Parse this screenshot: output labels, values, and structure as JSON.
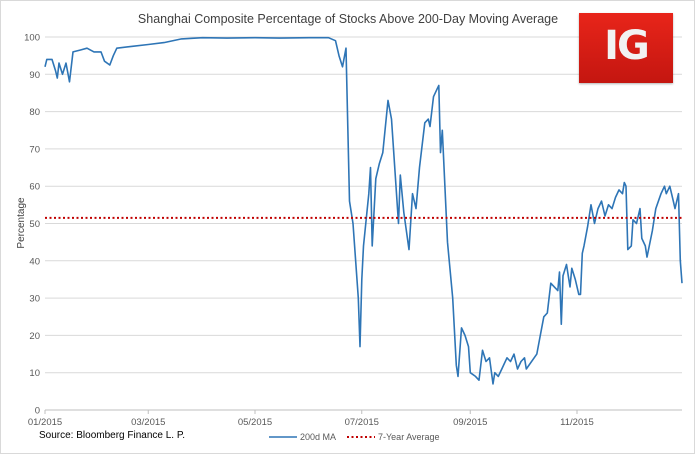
{
  "chart_data": {
    "type": "line",
    "title": "Shanghai Composite Percentage of Stocks Above 200-Day Moving Average",
    "xlabel": "",
    "ylabel": "Percentage",
    "ylim": [
      0,
      100
    ],
    "yticks": [
      0,
      10,
      20,
      30,
      40,
      50,
      60,
      70,
      80,
      90,
      100
    ],
    "xlim": [
      "2015-01-01",
      "2015-12-31"
    ],
    "xtick_labels": [
      "01/2015",
      "03/2015",
      "05/2015",
      "07/2015",
      "09/2015",
      "11/2015"
    ],
    "xtick_dates": [
      "2015-01-01",
      "2015-03-01",
      "2015-05-01",
      "2015-07-01",
      "2015-09-01",
      "2015-11-01"
    ],
    "grid": "horizontal",
    "legend": "bottom",
    "series": [
      {
        "name": "200d MA",
        "color": "#2e75b6",
        "style": "solid",
        "points": [
          [
            "2015-01-01",
            92
          ],
          [
            "2015-01-02",
            94
          ],
          [
            "2015-01-05",
            94
          ],
          [
            "2015-01-07",
            91
          ],
          [
            "2015-01-08",
            89
          ],
          [
            "2015-01-09",
            93
          ],
          [
            "2015-01-11",
            90
          ],
          [
            "2015-01-13",
            93
          ],
          [
            "2015-01-15",
            88
          ],
          [
            "2015-01-17",
            96
          ],
          [
            "2015-01-21",
            96.5
          ],
          [
            "2015-01-25",
            97
          ],
          [
            "2015-01-29",
            96
          ],
          [
            "2015-02-02",
            96
          ],
          [
            "2015-02-04",
            93.5
          ],
          [
            "2015-02-07",
            92.5
          ],
          [
            "2015-02-09",
            95
          ],
          [
            "2015-02-11",
            97
          ],
          [
            "2015-02-20",
            97.5
          ],
          [
            "2015-03-01",
            98
          ],
          [
            "2015-03-10",
            98.5
          ],
          [
            "2015-03-20",
            99.5
          ],
          [
            "2015-04-01",
            99.8
          ],
          [
            "2015-04-15",
            99.7
          ],
          [
            "2015-05-01",
            99.8
          ],
          [
            "2015-05-15",
            99.7
          ],
          [
            "2015-06-01",
            99.8
          ],
          [
            "2015-06-12",
            99.8
          ],
          [
            "2015-06-16",
            99
          ],
          [
            "2015-06-18",
            95
          ],
          [
            "2015-06-20",
            92
          ],
          [
            "2015-06-22",
            97
          ],
          [
            "2015-06-24",
            56
          ],
          [
            "2015-06-26",
            50
          ],
          [
            "2015-06-29",
            30
          ],
          [
            "2015-06-30",
            17
          ],
          [
            "2015-07-01",
            35
          ],
          [
            "2015-07-02",
            44
          ],
          [
            "2015-07-05",
            58
          ],
          [
            "2015-07-06",
            65
          ],
          [
            "2015-07-07",
            44
          ],
          [
            "2015-07-09",
            62
          ],
          [
            "2015-07-11",
            66
          ],
          [
            "2015-07-13",
            69
          ],
          [
            "2015-07-16",
            83
          ],
          [
            "2015-07-18",
            78
          ],
          [
            "2015-07-22",
            50
          ],
          [
            "2015-07-23",
            63
          ],
          [
            "2015-07-25",
            53
          ],
          [
            "2015-07-28",
            43
          ],
          [
            "2015-07-30",
            58
          ],
          [
            "2015-08-01",
            54
          ],
          [
            "2015-08-03",
            65
          ],
          [
            "2015-08-06",
            77
          ],
          [
            "2015-08-08",
            78
          ],
          [
            "2015-08-09",
            76
          ],
          [
            "2015-08-11",
            84
          ],
          [
            "2015-08-13",
            86
          ],
          [
            "2015-08-14",
            87
          ],
          [
            "2015-08-15",
            69
          ],
          [
            "2015-08-16",
            75
          ],
          [
            "2015-08-19",
            45
          ],
          [
            "2015-08-22",
            30
          ],
          [
            "2015-08-24",
            12
          ],
          [
            "2015-08-25",
            9
          ],
          [
            "2015-08-27",
            22
          ],
          [
            "2015-08-29",
            20
          ],
          [
            "2015-08-31",
            17
          ],
          [
            "2015-09-01",
            10
          ],
          [
            "2015-09-04",
            9
          ],
          [
            "2015-09-06",
            8
          ],
          [
            "2015-09-08",
            16
          ],
          [
            "2015-09-10",
            13
          ],
          [
            "2015-09-12",
            14
          ],
          [
            "2015-09-14",
            7
          ],
          [
            "2015-09-15",
            10
          ],
          [
            "2015-09-17",
            9
          ],
          [
            "2015-09-19",
            11
          ],
          [
            "2015-09-22",
            14
          ],
          [
            "2015-09-24",
            13
          ],
          [
            "2015-09-26",
            15
          ],
          [
            "2015-09-28",
            11
          ],
          [
            "2015-09-30",
            13
          ],
          [
            "2015-10-02",
            14
          ],
          [
            "2015-10-03",
            11
          ],
          [
            "2015-10-09",
            15
          ],
          [
            "2015-10-11",
            20
          ],
          [
            "2015-10-13",
            25
          ],
          [
            "2015-10-15",
            26
          ],
          [
            "2015-10-17",
            34
          ],
          [
            "2015-10-19",
            33
          ],
          [
            "2015-10-21",
            32
          ],
          [
            "2015-10-22",
            37
          ],
          [
            "2015-10-23",
            23
          ],
          [
            "2015-10-24",
            36
          ],
          [
            "2015-10-26",
            39
          ],
          [
            "2015-10-28",
            33
          ],
          [
            "2015-10-29",
            38
          ],
          [
            "2015-10-31",
            35
          ],
          [
            "2015-11-02",
            31
          ],
          [
            "2015-11-03",
            31
          ],
          [
            "2015-11-04",
            42
          ],
          [
            "2015-11-05",
            44
          ],
          [
            "2015-11-07",
            49
          ],
          [
            "2015-11-09",
            55
          ],
          [
            "2015-11-11",
            50
          ],
          [
            "2015-11-13",
            54
          ],
          [
            "2015-11-15",
            56
          ],
          [
            "2015-11-17",
            52
          ],
          [
            "2015-11-19",
            55
          ],
          [
            "2015-11-21",
            54
          ],
          [
            "2015-11-23",
            57
          ],
          [
            "2015-11-25",
            59
          ],
          [
            "2015-11-27",
            58
          ],
          [
            "2015-11-28",
            61
          ],
          [
            "2015-11-29",
            60
          ],
          [
            "2015-11-30",
            43
          ],
          [
            "2015-12-02",
            44
          ],
          [
            "2015-12-03",
            51
          ],
          [
            "2015-12-05",
            50
          ],
          [
            "2015-12-07",
            54
          ],
          [
            "2015-12-08",
            46
          ],
          [
            "2015-12-10",
            44
          ],
          [
            "2015-12-11",
            41
          ],
          [
            "2015-12-14",
            48
          ],
          [
            "2015-12-16",
            54
          ],
          [
            "2015-12-19",
            58
          ],
          [
            "2015-12-21",
            60
          ],
          [
            "2015-12-22",
            58
          ],
          [
            "2015-12-24",
            60
          ],
          [
            "2015-12-26",
            56
          ],
          [
            "2015-12-27",
            54
          ],
          [
            "2015-12-29",
            58
          ],
          [
            "2015-12-30",
            40
          ],
          [
            "2015-12-31",
            34
          ]
        ]
      },
      {
        "name": "7-Year Average",
        "color": "#c00000",
        "style": "dotted",
        "constant": 51.5
      }
    ]
  },
  "footer": {
    "source": "Source: Bloomberg Finance L. P."
  },
  "logo": {
    "text": "IG",
    "color": "#d71e16"
  }
}
